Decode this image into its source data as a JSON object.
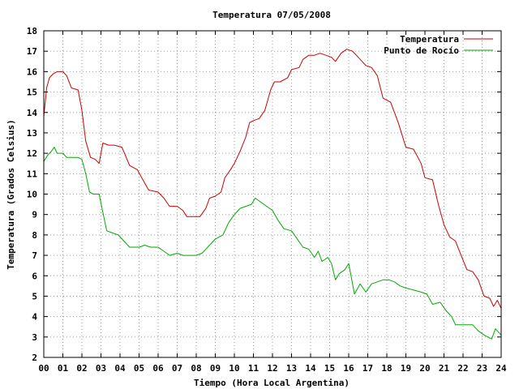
{
  "chart_data": {
    "type": "line",
    "title": "Temperatura 07/05/2008",
    "xlabel": "Tiempo (Hora Local Argentina)",
    "ylabel": "Temperatura (Grados Celsius)",
    "xlim": [
      0,
      24
    ],
    "ylim": [
      2,
      18
    ],
    "x_ticks": [
      "00",
      "01",
      "02",
      "03",
      "04",
      "05",
      "06",
      "07",
      "08",
      "09",
      "10",
      "11",
      "12",
      "13",
      "14",
      "15",
      "16",
      "17",
      "18",
      "19",
      "20",
      "21",
      "22",
      "23",
      "24"
    ],
    "y_ticks": [
      2,
      3,
      4,
      5,
      6,
      7,
      8,
      9,
      10,
      11,
      12,
      13,
      14,
      15,
      16,
      17,
      18
    ],
    "grid": true,
    "legend_position": "top-right",
    "series": [
      {
        "name": "Temperatura",
        "color": "#cc0000",
        "points": [
          [
            0.0,
            13.8
          ],
          [
            0.15,
            15.2
          ],
          [
            0.3,
            15.7
          ],
          [
            0.5,
            15.9
          ],
          [
            0.7,
            16.0
          ],
          [
            1.0,
            16.0
          ],
          [
            1.2,
            15.8
          ],
          [
            1.45,
            15.2
          ],
          [
            1.8,
            15.1
          ],
          [
            2.0,
            14.1
          ],
          [
            2.2,
            12.6
          ],
          [
            2.45,
            11.8
          ],
          [
            2.7,
            11.7
          ],
          [
            2.9,
            11.5
          ],
          [
            3.1,
            12.5
          ],
          [
            3.4,
            12.4
          ],
          [
            3.7,
            12.4
          ],
          [
            4.1,
            12.3
          ],
          [
            4.5,
            11.4
          ],
          [
            4.9,
            11.2
          ],
          [
            5.2,
            10.7
          ],
          [
            5.5,
            10.2
          ],
          [
            6.0,
            10.1
          ],
          [
            6.3,
            9.8
          ],
          [
            6.6,
            9.4
          ],
          [
            7.0,
            9.4
          ],
          [
            7.3,
            9.2
          ],
          [
            7.5,
            8.9
          ],
          [
            7.8,
            8.9
          ],
          [
            8.2,
            8.9
          ],
          [
            8.5,
            9.3
          ],
          [
            8.7,
            9.8
          ],
          [
            9.0,
            9.9
          ],
          [
            9.3,
            10.1
          ],
          [
            9.5,
            10.8
          ],
          [
            9.8,
            11.2
          ],
          [
            10.0,
            11.5
          ],
          [
            10.3,
            12.1
          ],
          [
            10.6,
            12.8
          ],
          [
            10.8,
            13.5
          ],
          [
            11.0,
            13.6
          ],
          [
            11.3,
            13.7
          ],
          [
            11.6,
            14.1
          ],
          [
            11.9,
            15.1
          ],
          [
            12.1,
            15.5
          ],
          [
            12.4,
            15.5
          ],
          [
            12.8,
            15.7
          ],
          [
            13.0,
            16.1
          ],
          [
            13.4,
            16.2
          ],
          [
            13.6,
            16.6
          ],
          [
            13.9,
            16.8
          ],
          [
            14.2,
            16.8
          ],
          [
            14.5,
            16.9
          ],
          [
            14.8,
            16.8
          ],
          [
            15.1,
            16.7
          ],
          [
            15.3,
            16.5
          ],
          [
            15.6,
            16.9
          ],
          [
            15.9,
            17.1
          ],
          [
            16.2,
            17.0
          ],
          [
            16.5,
            16.7
          ],
          [
            16.9,
            16.3
          ],
          [
            17.2,
            16.2
          ],
          [
            17.5,
            15.8
          ],
          [
            17.8,
            14.7
          ],
          [
            18.2,
            14.5
          ],
          [
            18.6,
            13.5
          ],
          [
            19.0,
            12.3
          ],
          [
            19.4,
            12.2
          ],
          [
            19.8,
            11.5
          ],
          [
            20.0,
            10.8
          ],
          [
            20.4,
            10.7
          ],
          [
            20.7,
            9.5
          ],
          [
            21.0,
            8.5
          ],
          [
            21.3,
            7.9
          ],
          [
            21.6,
            7.7
          ],
          [
            21.9,
            7.0
          ],
          [
            22.2,
            6.3
          ],
          [
            22.5,
            6.2
          ],
          [
            22.8,
            5.8
          ],
          [
            23.1,
            5.0
          ],
          [
            23.4,
            4.9
          ],
          [
            23.6,
            4.5
          ],
          [
            23.8,
            4.8
          ],
          [
            24.0,
            4.4
          ]
        ]
      },
      {
        "name": "Punto de Rocío",
        "color": "#00aa00",
        "points": [
          [
            0.0,
            11.6
          ],
          [
            0.2,
            11.9
          ],
          [
            0.4,
            12.1
          ],
          [
            0.55,
            12.3
          ],
          [
            0.7,
            12.0
          ],
          [
            1.0,
            12.0
          ],
          [
            1.2,
            11.8
          ],
          [
            1.5,
            11.8
          ],
          [
            1.8,
            11.8
          ],
          [
            2.0,
            11.7
          ],
          [
            2.2,
            11.0
          ],
          [
            2.4,
            10.1
          ],
          [
            2.6,
            10.0
          ],
          [
            2.9,
            10.0
          ],
          [
            3.1,
            9.1
          ],
          [
            3.3,
            8.2
          ],
          [
            3.6,
            8.1
          ],
          [
            3.9,
            8.0
          ],
          [
            4.2,
            7.7
          ],
          [
            4.5,
            7.4
          ],
          [
            4.8,
            7.4
          ],
          [
            5.0,
            7.4
          ],
          [
            5.3,
            7.5
          ],
          [
            5.6,
            7.4
          ],
          [
            6.0,
            7.4
          ],
          [
            6.3,
            7.2
          ],
          [
            6.6,
            7.0
          ],
          [
            7.0,
            7.1
          ],
          [
            7.3,
            7.0
          ],
          [
            7.6,
            7.0
          ],
          [
            8.0,
            7.0
          ],
          [
            8.3,
            7.1
          ],
          [
            8.6,
            7.4
          ],
          [
            9.0,
            7.8
          ],
          [
            9.4,
            8.0
          ],
          [
            9.7,
            8.6
          ],
          [
            10.0,
            9.0
          ],
          [
            10.3,
            9.3
          ],
          [
            10.6,
            9.4
          ],
          [
            10.9,
            9.5
          ],
          [
            11.1,
            9.8
          ],
          [
            11.4,
            9.6
          ],
          [
            11.7,
            9.4
          ],
          [
            12.0,
            9.2
          ],
          [
            12.3,
            8.7
          ],
          [
            12.6,
            8.3
          ],
          [
            13.0,
            8.2
          ],
          [
            13.3,
            7.8
          ],
          [
            13.6,
            7.4
          ],
          [
            13.9,
            7.3
          ],
          [
            14.2,
            6.9
          ],
          [
            14.4,
            7.2
          ],
          [
            14.6,
            6.7
          ],
          [
            14.9,
            6.9
          ],
          [
            15.1,
            6.6
          ],
          [
            15.3,
            5.8
          ],
          [
            15.5,
            6.1
          ],
          [
            15.8,
            6.3
          ],
          [
            16.0,
            6.6
          ],
          [
            16.3,
            5.1
          ],
          [
            16.6,
            5.6
          ],
          [
            16.9,
            5.2
          ],
          [
            17.2,
            5.6
          ],
          [
            17.5,
            5.7
          ],
          [
            17.8,
            5.8
          ],
          [
            18.1,
            5.8
          ],
          [
            18.4,
            5.7
          ],
          [
            18.7,
            5.5
          ],
          [
            19.0,
            5.4
          ],
          [
            19.4,
            5.3
          ],
          [
            19.8,
            5.2
          ],
          [
            20.1,
            5.1
          ],
          [
            20.4,
            4.6
          ],
          [
            20.8,
            4.7
          ],
          [
            21.1,
            4.3
          ],
          [
            21.4,
            4.0
          ],
          [
            21.6,
            3.6
          ],
          [
            22.0,
            3.6
          ],
          [
            22.5,
            3.6
          ],
          [
            22.8,
            3.3
          ],
          [
            23.1,
            3.1
          ],
          [
            23.3,
            3.0
          ],
          [
            23.5,
            2.9
          ],
          [
            23.7,
            3.4
          ],
          [
            24.0,
            3.1
          ]
        ]
      }
    ]
  }
}
